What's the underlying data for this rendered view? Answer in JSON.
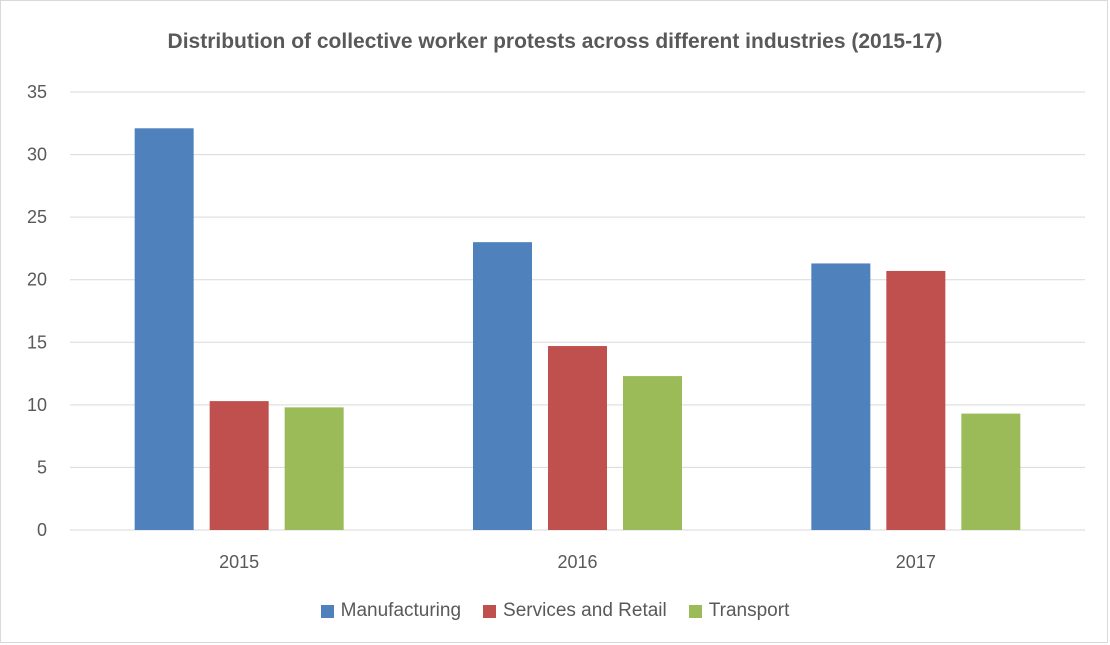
{
  "chart_data": {
    "type": "bar",
    "title": "Distribution of collective worker protests across different industries (2015-17)",
    "categories": [
      "2015",
      "2016",
      "2017"
    ],
    "series": [
      {
        "name": "Manufacturing",
        "values": [
          32.1,
          23.0,
          21.3
        ],
        "color": "#4f81bd"
      },
      {
        "name": "Services and Retail",
        "values": [
          10.3,
          14.7,
          20.7
        ],
        "color": "#c0504d"
      },
      {
        "name": "Transport",
        "values": [
          9.8,
          12.3,
          9.3
        ],
        "color": "#9bbb59"
      }
    ],
    "xlabel": "",
    "ylabel": "",
    "ylim": [
      0,
      35
    ],
    "yticks": [
      0,
      5,
      10,
      15,
      20,
      25,
      30,
      35
    ],
    "grid": true,
    "legend": "bottom"
  }
}
